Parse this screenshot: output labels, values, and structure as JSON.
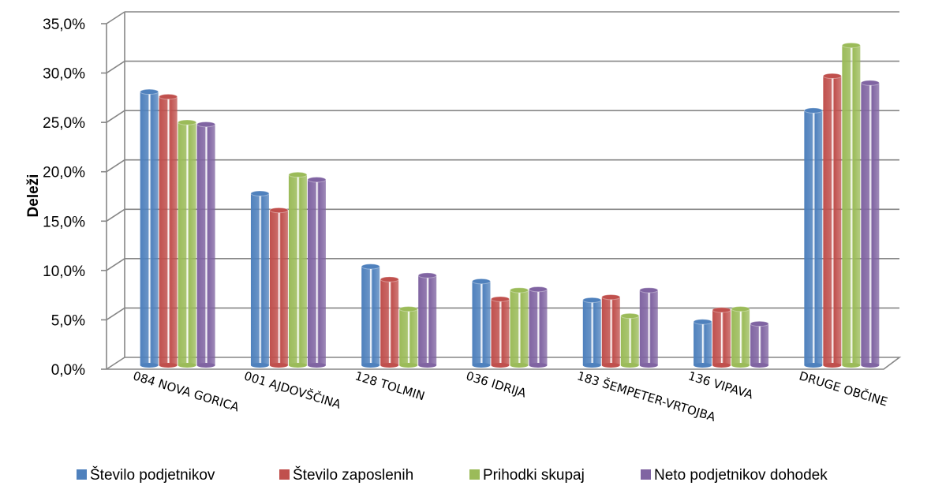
{
  "chart_data": {
    "type": "bar",
    "title": "",
    "xlabel": "",
    "ylabel": "Deleži",
    "ylim": [
      0,
      35
    ],
    "y_tick_labels": [
      "0,0%",
      "5,0%",
      "10,0%",
      "15,0%",
      "20,0%",
      "25,0%",
      "30,0%",
      "35,0%"
    ],
    "categories": [
      "084 NOVA GORICA",
      "001 AJDOVŠČINA",
      "128 TOLMIN",
      "036 IDRIJA",
      "183 ŠEMPETER-VRTOJBA",
      "136 VIPAVA",
      "DRUGE OBČINE"
    ],
    "series": [
      {
        "name": "Število podjetnikov",
        "color": "#4f81bd",
        "values": [
          27.7,
          17.4,
          10.0,
          8.5,
          6.6,
          4.4,
          25.8
        ]
      },
      {
        "name": "Število zaposlenih",
        "color": "#c0504d",
        "values": [
          27.2,
          15.7,
          8.7,
          6.7,
          6.9,
          5.6,
          29.3
        ]
      },
      {
        "name": "Prihodki skupaj",
        "color": "#9bbb59",
        "values": [
          24.6,
          19.3,
          5.7,
          7.6,
          5.0,
          5.7,
          32.4
        ]
      },
      {
        "name": "Neto podjetnikov dohodek",
        "color": "#8064a2",
        "values": [
          24.4,
          18.8,
          9.1,
          7.7,
          7.6,
          4.2,
          28.6
        ]
      }
    ],
    "grid": true,
    "legend_position": "bottom"
  }
}
